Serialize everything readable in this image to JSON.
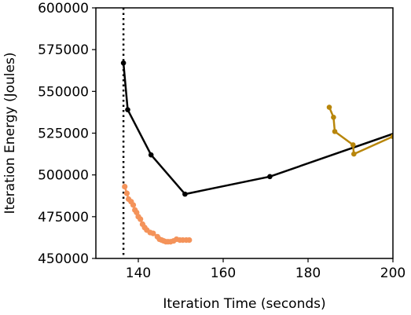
{
  "chart_data": {
    "type": "line",
    "title": "",
    "xlabel": "Iteration Time (seconds)",
    "ylabel": "Iteration Energy (Joules)",
    "xlim": [
      130,
      200
    ],
    "ylim": [
      450000,
      600000
    ],
    "x_ticks": [
      140,
      160,
      180,
      200
    ],
    "y_ticks": [
      450000,
      475000,
      500000,
      525000,
      550000,
      575000,
      600000
    ],
    "x_tick_labels": [
      "140",
      "160",
      "180",
      "200"
    ],
    "y_tick_labels": [
      "450000",
      "475000",
      "500000",
      "525000",
      "550000",
      "575000",
      "600000"
    ],
    "vline": {
      "x": 136.5,
      "style": "dotted",
      "color": "#000000"
    },
    "grid": false,
    "legend": "none",
    "series": [
      {
        "color": "#000000",
        "points": [
          [
            136.5,
            567000
          ],
          [
            137.5,
            539000
          ],
          [
            143,
            512000
          ],
          [
            151,
            488500
          ],
          [
            171,
            499000
          ],
          [
            205,
            529000
          ]
        ]
      },
      {
        "color": "#b8860b",
        "points": [
          [
            185,
            540500
          ],
          [
            186,
            534500
          ],
          [
            186.3,
            526000
          ],
          [
            190.6,
            518000
          ],
          [
            190.8,
            512500
          ],
          [
            200,
            523000
          ]
        ]
      },
      {
        "color": "#f4935a",
        "points": [
          [
            136.8,
            493000
          ],
          [
            137.3,
            489000
          ],
          [
            137.7,
            485500
          ],
          [
            138.3,
            484000
          ],
          [
            138.8,
            482000
          ],
          [
            139.2,
            479000
          ],
          [
            139.6,
            477500
          ],
          [
            140,
            475000
          ],
          [
            140.5,
            473500
          ],
          [
            141,
            470500
          ],
          [
            141.5,
            468500
          ],
          [
            142,
            467000
          ],
          [
            142.8,
            465500
          ],
          [
            143.5,
            465000
          ],
          [
            144.5,
            463000
          ],
          [
            145,
            461500
          ],
          [
            145.5,
            461000
          ],
          [
            146,
            460500
          ],
          [
            146.5,
            460000
          ],
          [
            147,
            460000
          ],
          [
            147.6,
            460000
          ],
          [
            148.3,
            460500
          ],
          [
            149,
            461500
          ],
          [
            149.8,
            461000
          ],
          [
            150.5,
            461000
          ],
          [
            151.3,
            461000
          ],
          [
            152,
            461000
          ]
        ]
      }
    ]
  }
}
